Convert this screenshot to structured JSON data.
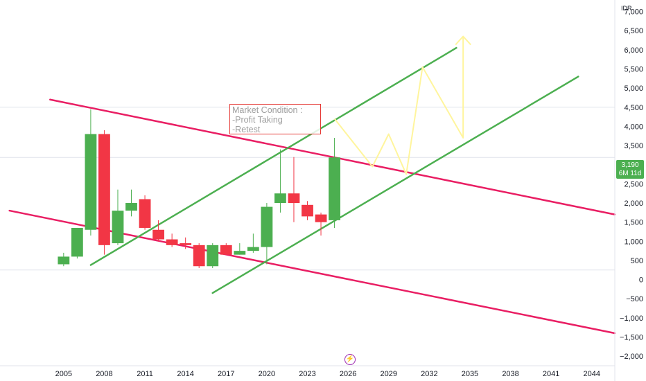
{
  "chart_data": {
    "type": "candlestick",
    "currency": "IDR",
    "y_ticks": [
      "7,000",
      "6,500",
      "6,000",
      "5,500",
      "5,000",
      "4,500",
      "4,000",
      "3,500",
      "3,000",
      "2,500",
      "2,000",
      "1,500",
      "1,000",
      "500",
      "0",
      "−500",
      "−1,000",
      "−1,500",
      "−2,000"
    ],
    "y_tick_values": [
      7000,
      6500,
      6000,
      5500,
      5000,
      4500,
      4000,
      3500,
      3000,
      2500,
      2000,
      1500,
      1000,
      500,
      0,
      -500,
      -1000,
      -1500,
      -2000
    ],
    "x_ticks": [
      "2005",
      "2008",
      "2011",
      "2014",
      "2017",
      "2020",
      "2023",
      "2026",
      "2029",
      "2032",
      "2035",
      "2038",
      "2041",
      "2044"
    ],
    "x_tick_values": [
      2005,
      2008,
      2011,
      2014,
      2017,
      2020,
      2023,
      2026,
      2029,
      2032,
      2035,
      2038,
      2041,
      2044
    ],
    "ylim": [
      -2250,
      7300
    ],
    "xlim": [
      2000.3,
      2045.7
    ],
    "last_price": {
      "value": "3,190",
      "countdown": "6M 11d",
      "price": 3190
    },
    "candles": [
      {
        "t": 2005.0,
        "o": 400,
        "h": 700,
        "l": 350,
        "c": 600
      },
      {
        "t": 2006.0,
        "o": 600,
        "h": 1350,
        "l": 550,
        "c": 1350
      },
      {
        "t": 2007.0,
        "o": 1300,
        "h": 4450,
        "l": 1150,
        "c": 3800
      },
      {
        "t": 2008.0,
        "o": 3800,
        "h": 3900,
        "l": 650,
        "c": 900
      },
      {
        "t": 2009.0,
        "o": 950,
        "h": 2350,
        "l": 900,
        "c": 1800
      },
      {
        "t": 2010.0,
        "o": 1800,
        "h": 2350,
        "l": 1650,
        "c": 2000
      },
      {
        "t": 2011.0,
        "o": 2100,
        "h": 2200,
        "l": 1300,
        "c": 1350
      },
      {
        "t": 2012.0,
        "o": 1300,
        "h": 1550,
        "l": 1000,
        "c": 1050
      },
      {
        "t": 2013.0,
        "o": 1050,
        "h": 1200,
        "l": 850,
        "c": 900
      },
      {
        "t": 2014.0,
        "o": 950,
        "h": 1100,
        "l": 800,
        "c": 900
      },
      {
        "t": 2015.0,
        "o": 900,
        "h": 950,
        "l": 300,
        "c": 350
      },
      {
        "t": 2016.0,
        "o": 350,
        "h": 950,
        "l": 300,
        "c": 900
      },
      {
        "t": 2017.0,
        "o": 900,
        "h": 950,
        "l": 650,
        "c": 650
      },
      {
        "t": 2018.0,
        "o": 650,
        "h": 950,
        "l": 650,
        "c": 750
      },
      {
        "t": 2019.0,
        "o": 750,
        "h": 1200,
        "l": 700,
        "c": 850
      },
      {
        "t": 2020.0,
        "o": 850,
        "h": 2000,
        "l": 400,
        "c": 1900
      },
      {
        "t": 2021.0,
        "o": 2000,
        "h": 3400,
        "l": 1750,
        "c": 2250
      },
      {
        "t": 2022.0,
        "o": 2250,
        "h": 3200,
        "l": 1500,
        "c": 2000
      },
      {
        "t": 2023.0,
        "o": 1950,
        "h": 2050,
        "l": 1550,
        "c": 1650
      },
      {
        "t": 2024.0,
        "o": 1700,
        "h": 1750,
        "l": 1150,
        "c": 1500
      },
      {
        "t": 2025.0,
        "o": 1550,
        "h": 3700,
        "l": 1350,
        "c": 3190
      }
    ],
    "trendlines": [
      {
        "color": "#e91e63",
        "points": [
          [
            2004.0,
            4700
          ],
          [
            2045.7,
            1700
          ]
        ]
      },
      {
        "color": "#e91e63",
        "points": [
          [
            2001.0,
            1800
          ],
          [
            2045.7,
            -1400
          ]
        ]
      },
      {
        "color": "#4caf50",
        "points": [
          [
            2007.0,
            380
          ],
          [
            2034.0,
            6050
          ]
        ]
      },
      {
        "color": "#4caf50",
        "points": [
          [
            2016.0,
            -350
          ],
          [
            2043.0,
            5300
          ]
        ]
      }
    ],
    "projection": {
      "color": "#fff59d",
      "points": [
        [
          2025.0,
          4200
        ],
        [
          2027.8,
          2950
        ],
        [
          2029.0,
          3800
        ],
        [
          2030.3,
          2750
        ],
        [
          2031.5,
          5550
        ],
        [
          2034.5,
          3700
        ],
        [
          2034.5,
          6350
        ]
      ]
    },
    "price_levels": [
      4500,
      3190,
      250
    ],
    "annotation": {
      "lines": [
        "Market Condition :",
        "-Profit Taking",
        "-Retest"
      ],
      "border_color": "#e53935"
    },
    "colors": {
      "up": "#4caf50",
      "down": "#f23645",
      "grid": "#e0e3eb"
    }
  }
}
